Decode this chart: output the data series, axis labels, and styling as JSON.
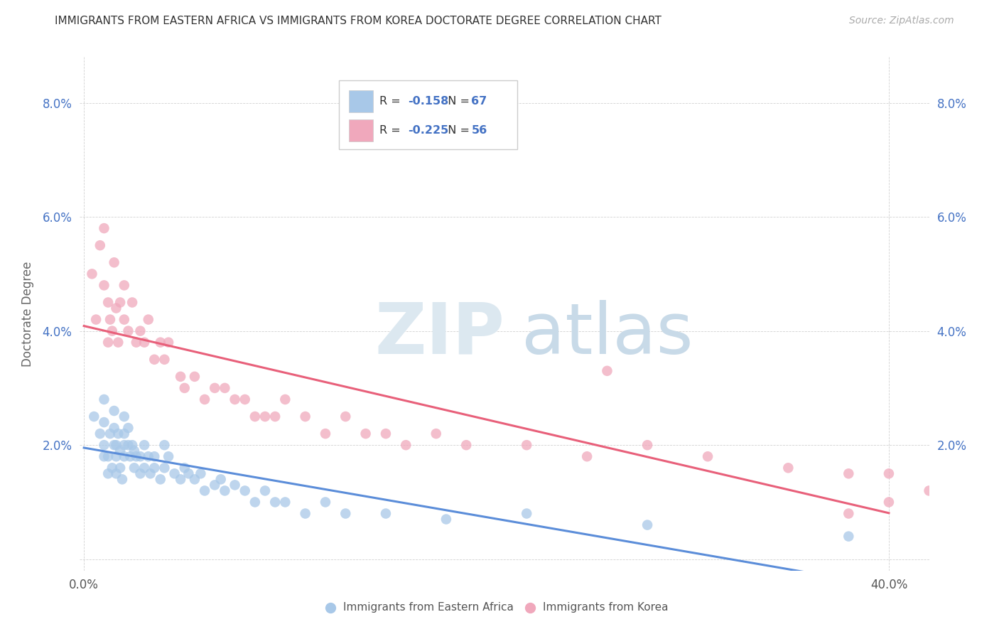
{
  "title": "IMMIGRANTS FROM EASTERN AFRICA VS IMMIGRANTS FROM KOREA DOCTORATE DEGREE CORRELATION CHART",
  "source": "Source: ZipAtlas.com",
  "ylabel": "Doctorate Degree",
  "ytick_vals": [
    0.0,
    0.02,
    0.04,
    0.06,
    0.08
  ],
  "ytick_labels": [
    "",
    "2.0%",
    "4.0%",
    "6.0%",
    "8.0%"
  ],
  "xtick_vals": [
    0.0,
    0.4
  ],
  "xtick_labels": [
    "0.0%",
    "40.0%"
  ],
  "xlim": [
    -0.002,
    0.42
  ],
  "ylim": [
    -0.002,
    0.088
  ],
  "blue_color": "#A8C8E8",
  "pink_color": "#F0A8BC",
  "blue_line_color": "#5B8DD9",
  "pink_line_color": "#E8607A",
  "blue_r": "-0.158",
  "blue_n": "67",
  "pink_r": "-0.225",
  "pink_n": "56",
  "ea_x": [
    0.005,
    0.008,
    0.01,
    0.01,
    0.01,
    0.01,
    0.012,
    0.012,
    0.013,
    0.014,
    0.015,
    0.015,
    0.015,
    0.016,
    0.016,
    0.016,
    0.017,
    0.018,
    0.018,
    0.019,
    0.02,
    0.02,
    0.02,
    0.02,
    0.022,
    0.022,
    0.023,
    0.024,
    0.025,
    0.025,
    0.026,
    0.028,
    0.028,
    0.03,
    0.03,
    0.032,
    0.033,
    0.035,
    0.035,
    0.038,
    0.04,
    0.04,
    0.042,
    0.045,
    0.048,
    0.05,
    0.052,
    0.055,
    0.058,
    0.06,
    0.065,
    0.068,
    0.07,
    0.075,
    0.08,
    0.085,
    0.09,
    0.095,
    0.1,
    0.11,
    0.12,
    0.13,
    0.15,
    0.18,
    0.22,
    0.28,
    0.38
  ],
  "ea_y": [
    0.025,
    0.022,
    0.028,
    0.018,
    0.02,
    0.024,
    0.015,
    0.018,
    0.022,
    0.016,
    0.026,
    0.02,
    0.023,
    0.015,
    0.018,
    0.02,
    0.022,
    0.016,
    0.019,
    0.014,
    0.025,
    0.018,
    0.02,
    0.022,
    0.02,
    0.023,
    0.018,
    0.02,
    0.016,
    0.019,
    0.018,
    0.015,
    0.018,
    0.02,
    0.016,
    0.018,
    0.015,
    0.016,
    0.018,
    0.014,
    0.02,
    0.016,
    0.018,
    0.015,
    0.014,
    0.016,
    0.015,
    0.014,
    0.015,
    0.012,
    0.013,
    0.014,
    0.012,
    0.013,
    0.012,
    0.01,
    0.012,
    0.01,
    0.01,
    0.008,
    0.01,
    0.008,
    0.008,
    0.007,
    0.008,
    0.006,
    0.004
  ],
  "ko_x": [
    0.004,
    0.006,
    0.008,
    0.01,
    0.01,
    0.012,
    0.012,
    0.013,
    0.014,
    0.015,
    0.016,
    0.017,
    0.018,
    0.02,
    0.02,
    0.022,
    0.024,
    0.026,
    0.028,
    0.03,
    0.032,
    0.035,
    0.038,
    0.04,
    0.042,
    0.048,
    0.05,
    0.055,
    0.06,
    0.065,
    0.07,
    0.075,
    0.08,
    0.085,
    0.09,
    0.095,
    0.1,
    0.11,
    0.12,
    0.13,
    0.14,
    0.15,
    0.16,
    0.175,
    0.19,
    0.22,
    0.25,
    0.28,
    0.31,
    0.35,
    0.38,
    0.4,
    0.42,
    0.38,
    0.4,
    0.26
  ],
  "ko_y": [
    0.05,
    0.042,
    0.055,
    0.048,
    0.058,
    0.045,
    0.038,
    0.042,
    0.04,
    0.052,
    0.044,
    0.038,
    0.045,
    0.048,
    0.042,
    0.04,
    0.045,
    0.038,
    0.04,
    0.038,
    0.042,
    0.035,
    0.038,
    0.035,
    0.038,
    0.032,
    0.03,
    0.032,
    0.028,
    0.03,
    0.03,
    0.028,
    0.028,
    0.025,
    0.025,
    0.025,
    0.028,
    0.025,
    0.022,
    0.025,
    0.022,
    0.022,
    0.02,
    0.022,
    0.02,
    0.02,
    0.018,
    0.02,
    0.018,
    0.016,
    0.015,
    0.015,
    0.012,
    0.008,
    0.01,
    0.033
  ]
}
